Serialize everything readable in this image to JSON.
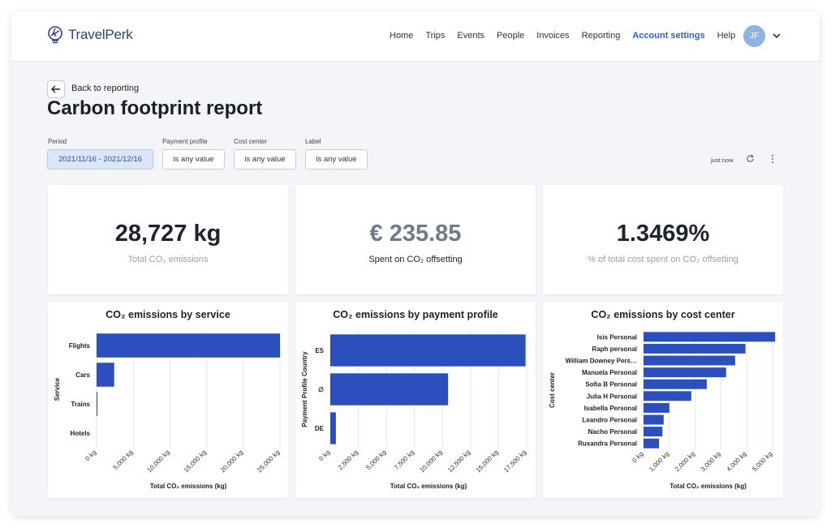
{
  "app": {
    "brand": "TravelPerk"
  },
  "nav": {
    "items": [
      "Home",
      "Trips",
      "Events",
      "People",
      "Invoices",
      "Reporting",
      "Account settings",
      "Help"
    ],
    "active": "Account settings"
  },
  "user": {
    "initials": "JF"
  },
  "back": {
    "label": "Back to reporting"
  },
  "page": {
    "title": "Carbon footprint report"
  },
  "filters": {
    "period": {
      "label": "Period",
      "value": "2021/11/16 - 2021/12/16"
    },
    "payment_profile": {
      "label": "Payment profile",
      "value": "is any value"
    },
    "cost_center": {
      "label": "Cost center",
      "value": "is any value"
    },
    "label": {
      "label": "Label",
      "value": "is any value"
    }
  },
  "status": {
    "updated": "just now"
  },
  "stats": [
    {
      "value": "28,727 kg",
      "label": "Total CO₂ emissions"
    },
    {
      "value": "€ 235.85",
      "label": "Spent on CO₂ offsetting"
    },
    {
      "value": "1.3469%",
      "label": "% of total cost spent on CO₂ offsetting"
    }
  ],
  "colors": {
    "bar": "#2b4fbd",
    "accent": "#2f5bd3"
  },
  "chart_data": [
    {
      "type": "bar",
      "orientation": "horizontal",
      "title": "CO₂ emissions by service",
      "xlabel": "Total CO₂ emissions (kg)",
      "ylabel": "Service",
      "categories": [
        "Flights",
        "Cars",
        "Trains",
        "Hotels"
      ],
      "values": [
        25000,
        2400,
        120,
        0
      ],
      "xlim": [
        0,
        25000
      ],
      "ticks": [
        0,
        5000,
        10000,
        15000,
        20000,
        25000
      ],
      "tick_labels": [
        "0 kg",
        "5,000 kg",
        "10,000 kg",
        "15,000 kg",
        "20,000 kg",
        "25,000 kg"
      ],
      "grid": true
    },
    {
      "type": "bar",
      "orientation": "horizontal",
      "title": "CO₂ emissions by payment profile",
      "xlabel": "Total CO₂ emissions (kg)",
      "ylabel": "Payment Profile Country",
      "categories": [
        "ES",
        "∅",
        "DE"
      ],
      "values": [
        17400,
        10500,
        500
      ],
      "xlim": [
        0,
        17500
      ],
      "ticks": [
        0,
        2500,
        5000,
        7500,
        10000,
        12500,
        15000,
        17500
      ],
      "tick_labels": [
        "0 kg",
        "2,500 kg",
        "5,000 kg",
        "7,500 kg",
        "10,000 kg",
        "12,500 kg",
        "15,000 kg",
        "17,500 kg"
      ],
      "grid": true
    },
    {
      "type": "bar",
      "orientation": "horizontal",
      "title": "CO₂ emissions by cost center",
      "xlabel": "Total CO₂ emissions (kg)",
      "ylabel": "Cost center",
      "categories": [
        "Isis Personal",
        "Raph personal",
        "William Downey Pers…",
        "Manuela Personal",
        "Sofia B Personal",
        "Julia H Personal",
        "Isabella Personal",
        "Leandro Personal",
        "Nacho Personal",
        "Ruxandra Personal"
      ],
      "values": [
        5100,
        3950,
        3550,
        3200,
        2450,
        1850,
        1000,
        780,
        730,
        600
      ],
      "xlim": [
        0,
        5000
      ],
      "ticks": [
        0,
        1000,
        2000,
        3000,
        4000,
        5000
      ],
      "tick_labels": [
        "0 kg",
        "1,000 kg",
        "2,000 kg",
        "3,000 kg",
        "4,000 kg",
        "5,000 kg"
      ],
      "grid": true
    }
  ]
}
